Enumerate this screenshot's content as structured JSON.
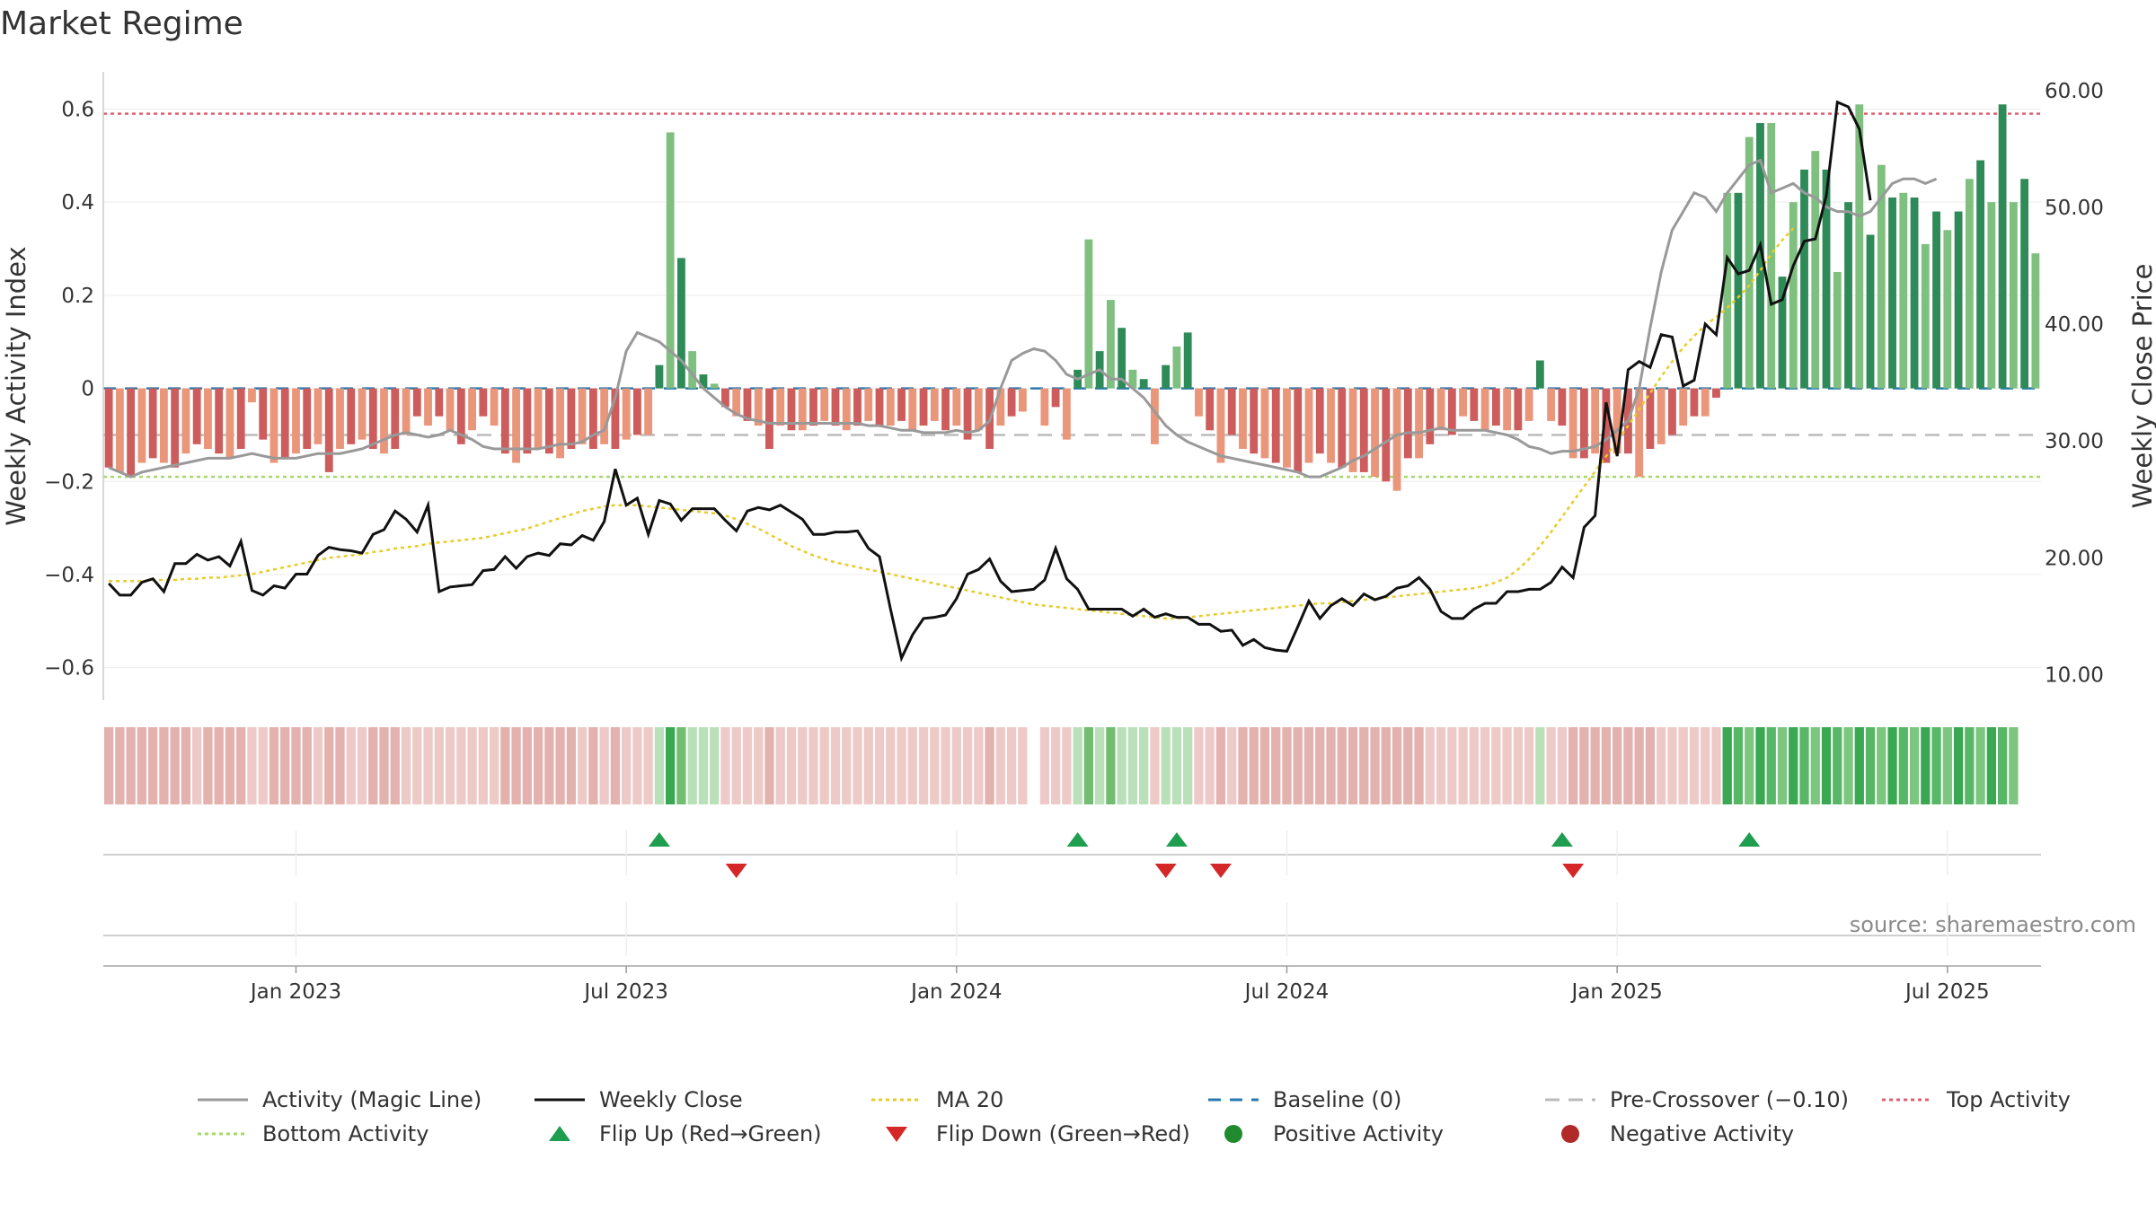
{
  "chart_data": {
    "type": "bar",
    "title": "Market Regime",
    "ylabel_left": "Weekly Activity Index",
    "ylabel_right": "Weekly Close Price",
    "source": "source: sharemaestro.com",
    "ylim_left": [
      -0.67,
      0.68
    ],
    "ylim_right": [
      7.8,
      61.6
    ],
    "yticks_left": [
      {
        "v": 0.6,
        "label": "0.6"
      },
      {
        "v": 0.4,
        "label": "0.4"
      },
      {
        "v": 0.2,
        "label": "0.2"
      },
      {
        "v": 0,
        "label": "0"
      },
      {
        "v": -0.2,
        "label": "−0.2"
      },
      {
        "v": -0.4,
        "label": "−0.4"
      },
      {
        "v": -0.6,
        "label": "−0.6"
      }
    ],
    "yticks_right": [
      {
        "v": 60,
        "label": "60.00"
      },
      {
        "v": 50,
        "label": "50.00"
      },
      {
        "v": 40,
        "label": "40.00"
      },
      {
        "v": 30,
        "label": "30.00"
      },
      {
        "v": 20,
        "label": "20.00"
      },
      {
        "v": 10,
        "label": "10.00"
      }
    ],
    "xticks": [
      {
        "week": 17,
        "label": "Jan 2023"
      },
      {
        "week": 47,
        "label": "Jul 2023"
      },
      {
        "week": 77,
        "label": "Jan 2024"
      },
      {
        "week": 107,
        "label": "Jul 2024"
      },
      {
        "week": 137,
        "label": "Jan 2025"
      },
      {
        "week": 167,
        "label": "Jul 2025"
      }
    ],
    "baseline": 0,
    "pre_crossover": -0.1,
    "top_activity": 0.59,
    "bottom_activity": -0.19,
    "activity": [
      -0.17,
      -0.18,
      -0.19,
      -0.16,
      -0.15,
      -0.16,
      -0.17,
      -0.14,
      -0.12,
      -0.13,
      -0.14,
      -0.15,
      -0.13,
      -0.03,
      -0.11,
      -0.16,
      -0.15,
      -0.14,
      -0.13,
      -0.12,
      -0.18,
      -0.13,
      -0.12,
      -0.11,
      -0.13,
      -0.14,
      -0.13,
      -0.1,
      -0.06,
      -0.08,
      -0.06,
      -0.09,
      -0.12,
      -0.09,
      -0.06,
      -0.08,
      -0.14,
      -0.16,
      -0.14,
      -0.13,
      -0.14,
      -0.15,
      -0.13,
      -0.12,
      -0.13,
      -0.12,
      -0.13,
      -0.11,
      -0.1,
      -0.1,
      0.05,
      0.55,
      0.28,
      0.08,
      0.03,
      0.01,
      -0.04,
      -0.06,
      -0.07,
      -0.08,
      -0.13,
      -0.08,
      -0.09,
      -0.09,
      -0.08,
      -0.07,
      -0.08,
      -0.09,
      -0.08,
      -0.07,
      -0.08,
      -0.08,
      -0.07,
      -0.09,
      -0.08,
      -0.07,
      -0.09,
      -0.08,
      -0.11,
      -0.09,
      -0.13,
      -0.08,
      -0.06,
      -0.05,
      null,
      -0.08,
      -0.04,
      -0.11,
      0.04,
      0.32,
      0.08,
      0.19,
      0.13,
      0.04,
      0.02,
      -0.12,
      0.05,
      0.09,
      0.12,
      -0.06,
      -0.09,
      -0.16,
      -0.1,
      -0.13,
      -0.14,
      -0.15,
      -0.16,
      -0.17,
      -0.18,
      -0.16,
      -0.14,
      -0.16,
      -0.17,
      -0.18,
      -0.18,
      -0.19,
      -0.2,
      -0.22,
      -0.15,
      -0.15,
      -0.12,
      -0.09,
      -0.1,
      -0.06,
      -0.07,
      -0.09,
      -0.08,
      -0.09,
      -0.09,
      -0.07,
      0.06,
      -0.07,
      -0.08,
      -0.15,
      -0.15,
      -0.14,
      -0.16,
      -0.14,
      -0.14,
      -0.19,
      -0.13,
      -0.12,
      -0.1,
      -0.08,
      -0.06,
      -0.06,
      -0.02,
      0.42,
      0.42,
      0.54,
      0.57,
      0.57,
      0.24,
      0.4,
      0.47,
      0.51,
      0.47,
      0.25,
      0.4,
      0.61,
      0.33,
      0.48,
      0.41,
      0.42,
      0.41,
      0.31,
      0.38,
      0.34,
      0.38,
      0.45,
      0.49,
      0.4,
      0.61,
      0.4,
      0.45,
      0.29
    ],
    "magic_line": [
      -0.17,
      -0.18,
      -0.19,
      -0.18,
      -0.175,
      -0.17,
      -0.165,
      -0.16,
      -0.155,
      -0.15,
      -0.15,
      -0.15,
      -0.145,
      -0.14,
      -0.145,
      -0.15,
      -0.15,
      -0.15,
      -0.145,
      -0.14,
      -0.14,
      -0.14,
      -0.135,
      -0.13,
      -0.12,
      -0.11,
      -0.1,
      -0.095,
      -0.1,
      -0.105,
      -0.1,
      -0.09,
      -0.1,
      -0.11,
      -0.125,
      -0.13,
      -0.13,
      -0.13,
      -0.13,
      -0.13,
      -0.125,
      -0.12,
      -0.12,
      -0.115,
      -0.1,
      -0.09,
      -0.02,
      0.08,
      0.12,
      0.11,
      0.1,
      0.08,
      0.06,
      0.03,
      0.0,
      -0.02,
      -0.04,
      -0.055,
      -0.065,
      -0.07,
      -0.075,
      -0.075,
      -0.075,
      -0.075,
      -0.075,
      -0.075,
      -0.075,
      -0.075,
      -0.075,
      -0.08,
      -0.08,
      -0.085,
      -0.09,
      -0.09,
      -0.095,
      -0.095,
      -0.095,
      -0.09,
      -0.095,
      -0.09,
      -0.07,
      0.0,
      0.06,
      0.075,
      0.085,
      0.08,
      0.06,
      0.03,
      0.02,
      0.03,
      0.04,
      0.02,
      0.02,
      0.0,
      -0.02,
      -0.05,
      -0.08,
      -0.1,
      -0.115,
      -0.125,
      -0.135,
      -0.145,
      -0.15,
      -0.155,
      -0.16,
      -0.165,
      -0.17,
      -0.175,
      -0.18,
      -0.19,
      -0.19,
      -0.18,
      -0.17,
      -0.155,
      -0.145,
      -0.13,
      -0.115,
      -0.1,
      -0.095,
      -0.095,
      -0.09,
      -0.085,
      -0.09,
      -0.09,
      -0.09,
      -0.09,
      -0.095,
      -0.1,
      -0.11,
      -0.125,
      -0.13,
      -0.14,
      -0.135,
      -0.135,
      -0.13,
      -0.125,
      -0.11,
      -0.09,
      -0.07,
      0.0,
      0.13,
      0.25,
      0.34,
      0.38,
      0.42,
      0.41,
      0.38,
      0.42,
      0.45,
      0.48,
      0.49,
      0.42,
      0.43,
      0.44,
      0.42,
      0.41,
      0.39,
      0.38,
      0.38,
      0.37,
      0.38,
      0.41,
      0.44,
      0.45,
      0.45,
      0.44,
      0.45
    ],
    "weekly_close": [
      17.8,
      16.8,
      16.8,
      17.9,
      18.2,
      17.1,
      19.5,
      19.5,
      20.3,
      19.8,
      20.1,
      19.3,
      21.4,
      17.2,
      16.8,
      17.6,
      17.4,
      18.6,
      18.6,
      20.2,
      20.9,
      20.7,
      20.6,
      20.4,
      22.0,
      22.4,
      24.0,
      23.3,
      22.2,
      24.5,
      17.1,
      17.5,
      17.6,
      17.7,
      18.9,
      19.0,
      20.1,
      19.1,
      20.1,
      20.4,
      20.2,
      21.2,
      21.1,
      21.9,
      21.5,
      23.1,
      27.6,
      24.5,
      25.1,
      22.0,
      24.9,
      24.6,
      23.2,
      24.2,
      24.2,
      24.2,
      23.2,
      22.3,
      24.0,
      24.3,
      24.1,
      24.5,
      23.9,
      23.3,
      22.0,
      22.0,
      22.2,
      22.2,
      22.3,
      20.8,
      20.1,
      15.6,
      11.4,
      13.4,
      14.8,
      14.9,
      15.1,
      16.5,
      18.6,
      19.0,
      19.9,
      18.0,
      17.1,
      17.2,
      17.3,
      18.1,
      20.8,
      18.2,
      17.3,
      15.6,
      15.6,
      15.6,
      15.6,
      15.0,
      15.6,
      14.9,
      15.2,
      14.9,
      14.9,
      14.3,
      14.3,
      13.7,
      13.8,
      12.5,
      13.0,
      12.3,
      12.1,
      12.0,
      14.1,
      16.3,
      14.8,
      15.9,
      16.5,
      15.9,
      16.9,
      16.4,
      16.7,
      17.4,
      17.6,
      18.3,
      17.3,
      15.4,
      14.8,
      14.8,
      15.6,
      16.1,
      16.1,
      17.1,
      17.1,
      17.3,
      17.3,
      17.9,
      19.2,
      18.3,
      22.6,
      23.6,
      33.3,
      28.7,
      36.1,
      36.8,
      36.3,
      39.1,
      38.9,
      34.7,
      35.2,
      40.0,
      39.1,
      45.7,
      44.3,
      44.6,
      46.8,
      41.7,
      42.1,
      45.0,
      47.1,
      47.3,
      51.0,
      59.0,
      58.6,
      56.7,
      50.6
    ],
    "ma20": [
      18.0,
      18.0,
      18.0,
      18.0,
      18.1,
      18.1,
      18.1,
      18.2,
      18.2,
      18.3,
      18.3,
      18.4,
      18.5,
      18.6,
      18.8,
      19.0,
      19.2,
      19.4,
      19.6,
      19.8,
      20.0,
      20.1,
      20.2,
      20.3,
      20.5,
      20.6,
      20.8,
      20.9,
      21.0,
      21.2,
      21.3,
      21.4,
      21.5,
      21.6,
      21.7,
      21.9,
      22.1,
      22.3,
      22.5,
      22.8,
      23.1,
      23.4,
      23.7,
      24.0,
      24.2,
      24.4,
      24.5,
      24.5,
      24.5,
      24.4,
      24.3,
      24.2,
      24.1,
      24.0,
      23.9,
      23.8,
      23.6,
      23.3,
      22.9,
      22.5,
      22.0,
      21.5,
      21.0,
      20.6,
      20.2,
      19.9,
      19.6,
      19.4,
      19.2,
      19.0,
      18.8,
      18.6,
      18.4,
      18.2,
      18.0,
      17.8,
      17.6,
      17.4,
      17.2,
      17.0,
      16.8,
      16.6,
      16.4,
      16.2,
      16.0,
      15.9,
      15.8,
      15.7,
      15.6,
      15.5,
      15.4,
      15.3,
      15.2,
      15.1,
      15.0,
      14.9,
      14.8,
      14.8,
      14.9,
      15.0,
      15.1,
      15.2,
      15.3,
      15.4,
      15.5,
      15.6,
      15.7,
      15.8,
      15.9,
      16.0,
      16.1,
      16.1,
      16.2,
      16.3,
      16.4,
      16.5,
      16.6,
      16.7,
      16.8,
      16.9,
      17.0,
      17.1,
      17.2,
      17.3,
      17.4,
      17.6,
      17.9,
      18.3,
      19.0,
      19.9,
      21.0,
      22.2,
      23.5,
      24.8,
      26.1,
      27.4,
      28.7,
      30.0,
      31.3,
      32.7,
      34.1,
      35.5,
      36.8,
      38.0,
      39.0,
      39.9,
      40.6,
      41.4,
      42.3,
      43.3,
      44.6,
      46.0,
      47.2,
      48.2
    ],
    "ma20_start_week": 0,
    "close_start_week": 0,
    "strip": [
      1,
      1,
      1,
      1,
      1,
      1,
      1,
      1,
      1,
      1,
      1,
      1,
      1,
      1,
      1,
      1,
      1,
      1,
      1,
      1,
      1,
      1,
      1,
      1,
      1,
      1,
      1,
      1,
      1,
      1,
      1,
      1,
      1,
      1,
      1,
      1,
      1,
      1,
      1,
      1,
      1,
      1,
      1,
      1,
      1,
      1,
      1,
      1,
      1,
      1,
      2,
      3,
      2,
      2,
      2,
      2,
      1,
      1,
      1,
      1,
      1,
      1,
      1,
      1,
      1,
      1,
      1,
      1,
      1,
      1,
      1,
      1,
      1,
      1,
      1,
      1,
      1,
      1,
      1,
      1,
      1,
      1,
      1,
      1,
      0,
      1,
      1,
      1,
      2,
      2,
      2,
      2,
      2,
      2,
      2,
      1,
      2,
      2,
      2,
      1,
      1,
      1,
      1,
      1,
      1,
      1,
      1,
      1,
      1,
      1,
      1,
      1,
      1,
      1,
      1,
      1,
      1,
      1,
      1,
      1,
      1,
      1,
      1,
      1,
      1,
      1,
      1,
      1,
      1,
      1,
      2,
      1,
      1,
      1,
      1,
      1,
      1,
      1,
      1,
      1,
      1,
      1,
      1,
      1,
      1,
      1,
      1,
      3,
      3,
      3,
      3,
      3,
      3,
      3,
      3,
      3,
      3,
      3,
      3,
      3,
      3,
      3,
      3,
      3,
      3,
      3,
      3,
      3,
      3,
      3,
      3,
      3,
      3,
      3
    ],
    "flip_up_weeks": [
      50,
      88,
      97,
      132,
      149
    ],
    "flip_down_weeks": [
      57,
      96,
      101,
      133
    ],
    "legend": [
      {
        "label": "Activity (Magic Line)",
        "kind": "line",
        "color": "#999999",
        "dash": ""
      },
      {
        "label": "Weekly Close",
        "kind": "line",
        "color": "#111111",
        "dash": ""
      },
      {
        "label": "MA 20",
        "kind": "line",
        "color": "#e8cc2a",
        "dash": "4 4"
      },
      {
        "label": "Baseline (0)",
        "kind": "line",
        "color": "#2a7ab0",
        "dash": "14 10"
      },
      {
        "label": "Pre-Crossover (−0.10)",
        "kind": "line",
        "color": "#bbbbbb",
        "dash": "16 10"
      },
      {
        "label": "Top Activity",
        "kind": "line",
        "color": "#e06070",
        "dash": "4 4"
      },
      {
        "label": "Bottom Activity",
        "kind": "line",
        "color": "#a6d96a",
        "dash": "4 4"
      },
      {
        "label": "Flip Up (Red→Green)",
        "kind": "tri-up",
        "color": "#1f9e50",
        "dash": ""
      },
      {
        "label": "Flip Down (Green→Red)",
        "kind": "tri-down",
        "color": "#d62728",
        "dash": ""
      },
      {
        "label": "Positive Activity",
        "kind": "dot",
        "color": "#1f8a2e",
        "dash": ""
      },
      {
        "label": "Negative Activity",
        "kind": "dot",
        "color": "#b02a2a",
        "dash": ""
      }
    ],
    "colors": {
      "pos_dark": "#2e8b57",
      "pos_light": "#7fbf7f",
      "neg_dark": "#cd5c5c",
      "neg_light": "#e9967a",
      "close": "#111111",
      "magic": "#999999",
      "ma20": "#e8cc2a",
      "top": "#e06070",
      "bottom": "#a6d96a",
      "pre": "#bbbbbb",
      "base": "#2a7ab0",
      "flip_up": "#1f9e50",
      "flip_down": "#d62728"
    }
  }
}
